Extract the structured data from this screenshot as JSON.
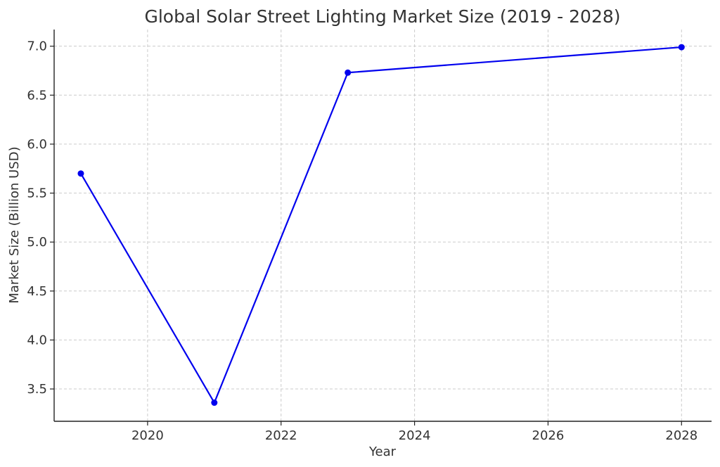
{
  "chart_data": {
    "type": "line",
    "title": "Global Solar Street Lighting Market Size (2019 - 2028)",
    "xlabel": "Year",
    "ylabel": "Market Size (Billion USD)",
    "x": [
      2019,
      2021,
      2023,
      2028
    ],
    "series": [
      {
        "values": [
          5.7,
          3.36,
          6.73,
          6.99
        ]
      }
    ],
    "xlim": [
      2018.6,
      2028.45
    ],
    "ylim": [
      3.17,
      7.17
    ],
    "xticks": [
      2020,
      2022,
      2024,
      2026,
      2028
    ],
    "yticks": [
      3.5,
      4.0,
      4.5,
      5.0,
      5.5,
      6.0,
      6.5,
      7.0
    ],
    "xtick_labels": [
      "2020",
      "2022",
      "2024",
      "2026",
      "2028"
    ],
    "ytick_labels": [
      "3.5",
      "4.0",
      "4.5",
      "5.0",
      "5.5",
      "6.0",
      "6.5",
      "7.0"
    ],
    "grid": true,
    "line_color": "#0000ee",
    "marker": "circle"
  }
}
